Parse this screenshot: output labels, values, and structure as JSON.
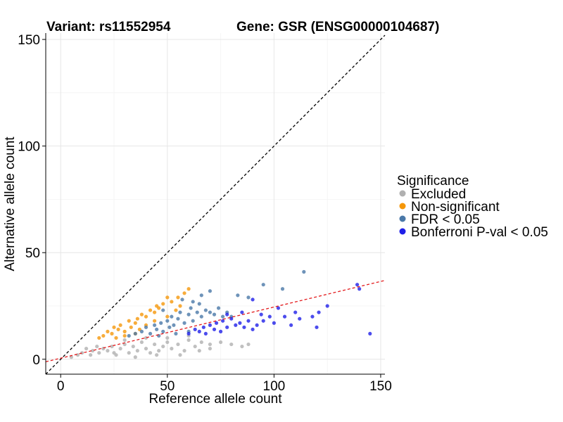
{
  "chart_data": {
    "type": "scatter",
    "title_variant": "Variant: rs11552954",
    "title_gene": "Gene: GSR (ENSG00000104687)",
    "xlabel": "Reference allele count",
    "ylabel": "Alternative allele count",
    "xlim": [
      -7,
      152
    ],
    "ylim": [
      -7,
      153
    ],
    "xticks": [
      0,
      50,
      100,
      150
    ],
    "yticks": [
      0,
      50,
      100,
      150
    ],
    "legend_title": "Significance",
    "legend_position": "right",
    "colors": {
      "Excluded": "#b0b0b0",
      "Non-significant": "#f5970a",
      "FDR < 0.05": "#4a78a8",
      "Bonferroni P-val < 0.05": "#1f1fe8",
      "identity_line": "#000000",
      "fit_line": "#e31a1c"
    },
    "reference_lines": [
      {
        "name": "identity",
        "slope": 1,
        "intercept": 0,
        "style": "dashed"
      },
      {
        "name": "fit",
        "slope": 0.24,
        "intercept": 0.5,
        "style": "dashed"
      }
    ],
    "series": [
      {
        "name": "Excluded",
        "points": [
          [
            5,
            1
          ],
          [
            8,
            2
          ],
          [
            10,
            3
          ],
          [
            12,
            5
          ],
          [
            14,
            2
          ],
          [
            15,
            4
          ],
          [
            17,
            6
          ],
          [
            18,
            3
          ],
          [
            20,
            5
          ],
          [
            22,
            4
          ],
          [
            24,
            6
          ],
          [
            26,
            2
          ],
          [
            28,
            5
          ],
          [
            30,
            7
          ],
          [
            32,
            3
          ],
          [
            34,
            6
          ],
          [
            36,
            4
          ],
          [
            38,
            8
          ],
          [
            40,
            5
          ],
          [
            42,
            3
          ],
          [
            44,
            7
          ],
          [
            46,
            4
          ],
          [
            48,
            6
          ],
          [
            50,
            8
          ],
          [
            52,
            5
          ],
          [
            55,
            7
          ],
          [
            58,
            4
          ],
          [
            60,
            9
          ],
          [
            63,
            6
          ],
          [
            66,
            8
          ],
          [
            70,
            7
          ],
          [
            75,
            8
          ],
          [
            80,
            7
          ],
          [
            85,
            6
          ],
          [
            88,
            7
          ],
          [
            70,
            5
          ],
          [
            65,
            4
          ],
          [
            56,
            2
          ],
          [
            45,
            2
          ],
          [
            35,
            1
          ],
          [
            25,
            3
          ],
          [
            30,
            9
          ],
          [
            40,
            10
          ],
          [
            50,
            10
          ],
          [
            60,
            11
          ]
        ]
      },
      {
        "name": "Non-significant",
        "points": [
          [
            18,
            10
          ],
          [
            20,
            11
          ],
          [
            22,
            13
          ],
          [
            24,
            12
          ],
          [
            25,
            15
          ],
          [
            27,
            14
          ],
          [
            28,
            16
          ],
          [
            30,
            13
          ],
          [
            32,
            18
          ],
          [
            33,
            15
          ],
          [
            35,
            17
          ],
          [
            36,
            19
          ],
          [
            37,
            14
          ],
          [
            38,
            21
          ],
          [
            40,
            20
          ],
          [
            42,
            23
          ],
          [
            44,
            22
          ],
          [
            45,
            25
          ],
          [
            46,
            24
          ],
          [
            48,
            26
          ],
          [
            50,
            29
          ],
          [
            52,
            27
          ],
          [
            55,
            29
          ],
          [
            58,
            31
          ],
          [
            60,
            33
          ],
          [
            40,
            16
          ],
          [
            35,
            12
          ],
          [
            30,
            11
          ],
          [
            26,
            10
          ],
          [
            44,
            18
          ],
          [
            50,
            20
          ],
          [
            54,
            23
          ],
          [
            56,
            25
          ]
        ]
      },
      {
        "name": "FDR < 0.05",
        "points": [
          [
            32,
            11
          ],
          [
            35,
            12
          ],
          [
            38,
            13
          ],
          [
            40,
            15
          ],
          [
            42,
            12
          ],
          [
            44,
            16
          ],
          [
            45,
            14
          ],
          [
            47,
            17
          ],
          [
            48,
            13
          ],
          [
            50,
            18
          ],
          [
            51,
            15
          ],
          [
            52,
            20
          ],
          [
            53,
            16
          ],
          [
            55,
            19
          ],
          [
            56,
            22
          ],
          [
            58,
            17
          ],
          [
            60,
            21
          ],
          [
            61,
            24
          ],
          [
            62,
            18
          ],
          [
            64,
            22
          ],
          [
            65,
            26
          ],
          [
            66,
            20
          ],
          [
            68,
            23
          ],
          [
            70,
            22
          ],
          [
            72,
            21
          ],
          [
            74,
            24
          ],
          [
            76,
            20
          ],
          [
            78,
            22
          ],
          [
            80,
            20
          ],
          [
            66,
            30
          ],
          [
            70,
            32
          ],
          [
            57,
            28
          ],
          [
            48,
            23
          ],
          [
            62,
            27
          ],
          [
            114,
            41
          ],
          [
            95,
            35
          ],
          [
            104,
            33
          ],
          [
            83,
            30
          ],
          [
            88,
            29
          ],
          [
            60,
            13
          ],
          [
            54,
            12
          ],
          [
            46,
            11
          ]
        ]
      },
      {
        "name": "Bonferroni P-val < 0.05",
        "points": [
          [
            60,
            12
          ],
          [
            63,
            14
          ],
          [
            65,
            13
          ],
          [
            67,
            15
          ],
          [
            68,
            12
          ],
          [
            70,
            16
          ],
          [
            72,
            14
          ],
          [
            73,
            17
          ],
          [
            75,
            13
          ],
          [
            76,
            18
          ],
          [
            78,
            15
          ],
          [
            80,
            19
          ],
          [
            82,
            16
          ],
          [
            84,
            17
          ],
          [
            86,
            15
          ],
          [
            88,
            18
          ],
          [
            90,
            14
          ],
          [
            92,
            16
          ],
          [
            95,
            18
          ],
          [
            98,
            20
          ],
          [
            100,
            17
          ],
          [
            102,
            24
          ],
          [
            105,
            20
          ],
          [
            108,
            16
          ],
          [
            110,
            22
          ],
          [
            112,
            19
          ],
          [
            118,
            20
          ],
          [
            120,
            15
          ],
          [
            121,
            22
          ],
          [
            125,
            25
          ],
          [
            139,
            35
          ],
          [
            140,
            33
          ],
          [
            145,
            12
          ],
          [
            90,
            28
          ],
          [
            94,
            21
          ],
          [
            85,
            22
          ],
          [
            78,
            21
          ]
        ]
      }
    ]
  }
}
